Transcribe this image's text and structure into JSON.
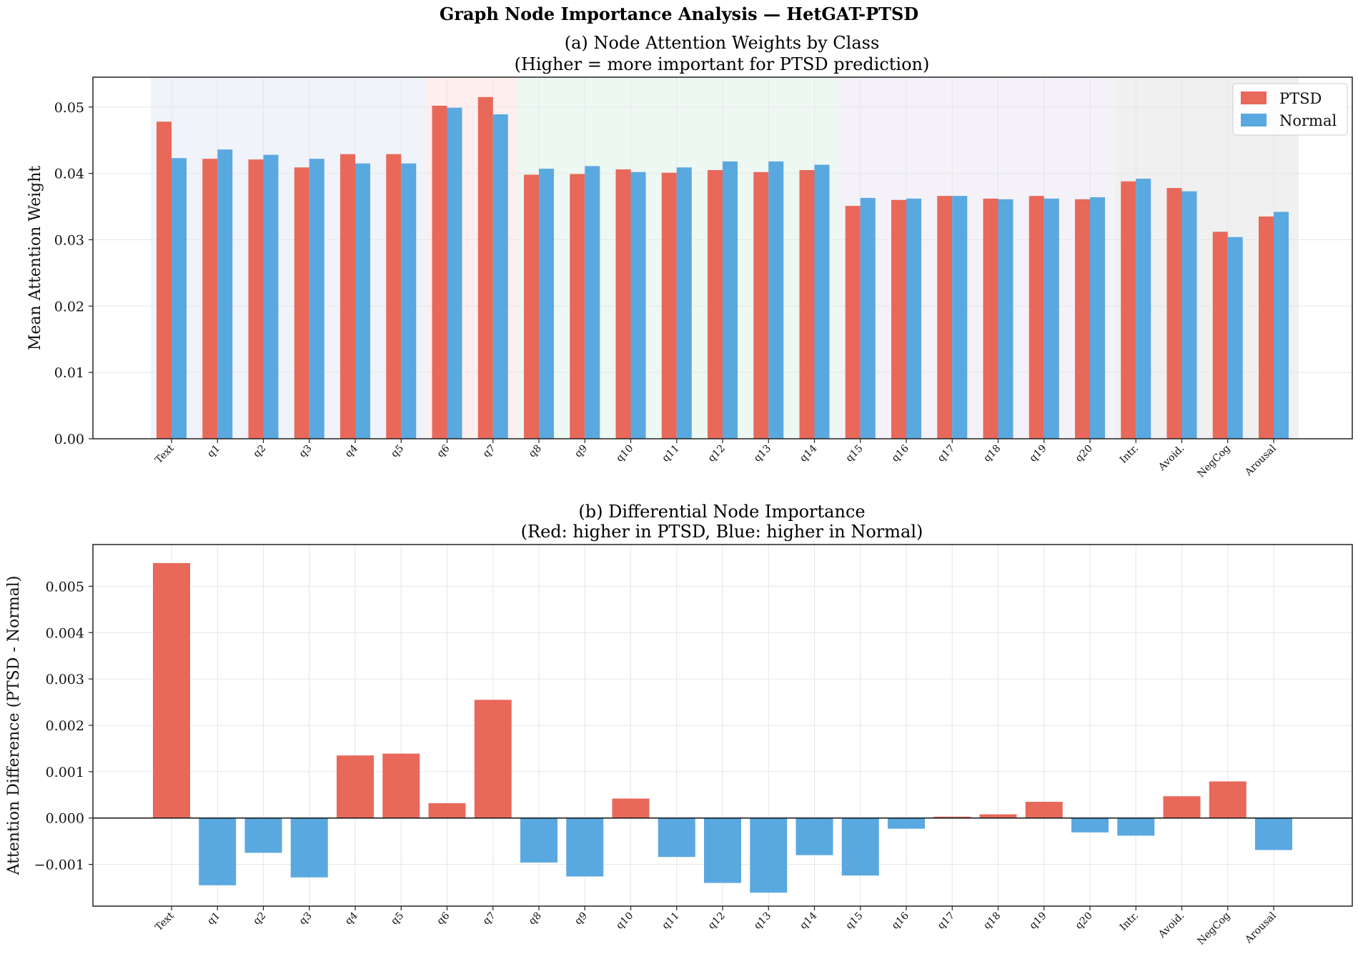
{
  "figure": {
    "title": "Graph Node Importance Analysis — HetGAT-PTSD"
  },
  "colors": {
    "ptsd": "#e8685a",
    "normal": "#5aa8e0",
    "grid": "#e6e6e6",
    "bands": [
      "#e9eef7",
      "#fde7e7",
      "#e6f5ec",
      "#efebf6",
      "#e9e9e9"
    ]
  },
  "chart_data": [
    {
      "type": "bar",
      "title": "(a) Node Attention Weights by Class",
      "subtitle": "(Higher = more important for PTSD prediction)",
      "ylabel": "Mean Attention Weight",
      "xlabel": "",
      "ylim": [
        0,
        0.0545
      ],
      "yticks": [
        "0.00",
        "0.01",
        "0.02",
        "0.03",
        "0.04",
        "0.05"
      ],
      "ytick_values": [
        0,
        0.01,
        0.02,
        0.03,
        0.04,
        0.05
      ],
      "grid": true,
      "legend": "top-right",
      "categories": [
        "Text",
        "q1",
        "q2",
        "q3",
        "q4",
        "q5",
        "q6",
        "q7",
        "q8",
        "q9",
        "q10",
        "q11",
        "q12",
        "q13",
        "q14",
        "q15",
        "q16",
        "q17",
        "q18",
        "q19",
        "q20",
        "Intr.",
        "Avoid.",
        "NegCog",
        "Arousal"
      ],
      "series": [
        {
          "name": "PTSD",
          "values": [
            0.0478,
            0.0422,
            0.0421,
            0.0409,
            0.0429,
            0.0429,
            0.0502,
            0.0515,
            0.0398,
            0.0399,
            0.0406,
            0.0401,
            0.0405,
            0.0402,
            0.0405,
            0.0351,
            0.036,
            0.0366,
            0.0362,
            0.0366,
            0.0361,
            0.0388,
            0.0378,
            0.0312,
            0.0335
          ]
        },
        {
          "name": "Normal",
          "values": [
            0.0423,
            0.0436,
            0.0428,
            0.0422,
            0.0415,
            0.0415,
            0.0499,
            0.0489,
            0.0407,
            0.0411,
            0.0402,
            0.0409,
            0.0418,
            0.0418,
            0.0413,
            0.0363,
            0.0362,
            0.0366,
            0.0361,
            0.0362,
            0.0364,
            0.0392,
            0.0373,
            0.0304,
            0.0342
          ]
        }
      ],
      "background_groups": [
        {
          "from": "Text",
          "to": "q5"
        },
        {
          "from": "q6",
          "to": "q7"
        },
        {
          "from": "q8",
          "to": "q14"
        },
        {
          "from": "q15",
          "to": "q20"
        },
        {
          "from": "Intr.",
          "to": "Arousal"
        }
      ]
    },
    {
      "type": "bar",
      "title": "(b) Differential Node Importance",
      "subtitle": "(Red: higher in PTSD, Blue: higher in Normal)",
      "ylabel": "Attention Difference (PTSD - Normal)",
      "xlabel": "",
      "ylim": [
        -0.0019,
        0.0059
      ],
      "yticks": [
        "−0.001",
        "0.000",
        "0.001",
        "0.002",
        "0.003",
        "0.004",
        "0.005"
      ],
      "ytick_values": [
        -0.001,
        0,
        0.001,
        0.002,
        0.003,
        0.004,
        0.005
      ],
      "grid": true,
      "zero_line": true,
      "categories": [
        "Text",
        "q1",
        "q2",
        "q3",
        "q4",
        "q5",
        "q6",
        "q7",
        "q8",
        "q9",
        "q10",
        "q11",
        "q12",
        "q13",
        "q14",
        "q15",
        "q16",
        "q17",
        "q18",
        "q19",
        "q20",
        "Intr.",
        "Avoid.",
        "NegCog",
        "Arousal"
      ],
      "values": [
        0.0055,
        -0.00145,
        -0.00075,
        -0.00128,
        0.00135,
        0.00139,
        0.00032,
        0.00255,
        -0.00096,
        -0.00126,
        0.00042,
        -0.00084,
        -0.0014,
        -0.00161,
        -0.0008,
        -0.00124,
        -0.00023,
        3e-05,
        8e-05,
        0.00035,
        -0.00031,
        -0.00038,
        0.00047,
        0.00079,
        -0.00069
      ]
    }
  ]
}
